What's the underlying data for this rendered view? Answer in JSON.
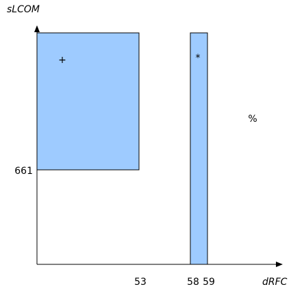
{
  "chart_data": {
    "type": "bar",
    "xlabel": "dRFC",
    "ylabel": "sLCOM",
    "x_ticks": [
      "53",
      "58",
      "59"
    ],
    "y_ticks": [
      "661"
    ],
    "bars": [
      {
        "x_start": 0,
        "x_end": 53,
        "y_start": 661,
        "marker": "+"
      },
      {
        "x_start": 58,
        "x_end": 59,
        "y_start": 0,
        "marker": "*"
      }
    ],
    "annotations": [
      {
        "text": "%"
      }
    ],
    "colors": {
      "bar_fill": "#9ecbff",
      "bar_stroke": "#000000"
    },
    "grid": false
  }
}
